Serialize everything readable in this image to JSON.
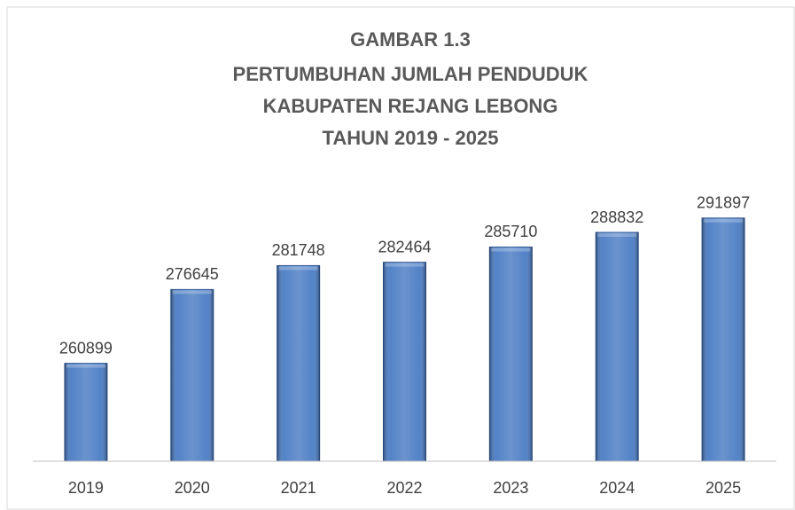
{
  "chart_data": {
    "type": "bar",
    "title": [
      "GAMBAR 1.3",
      "PERTUMBUHAN JUMLAH PENDUDUK",
      "KABUPATEN REJANG LEBONG",
      "TAHUN 2019 - 2025"
    ],
    "categories": [
      "2019",
      "2020",
      "2021",
      "2022",
      "2023",
      "2024",
      "2025"
    ],
    "values": [
      260899,
      276645,
      281748,
      282464,
      285710,
      288832,
      291897
    ],
    "color": "#4a7cc4",
    "ylim": [
      240000,
      300000
    ]
  }
}
